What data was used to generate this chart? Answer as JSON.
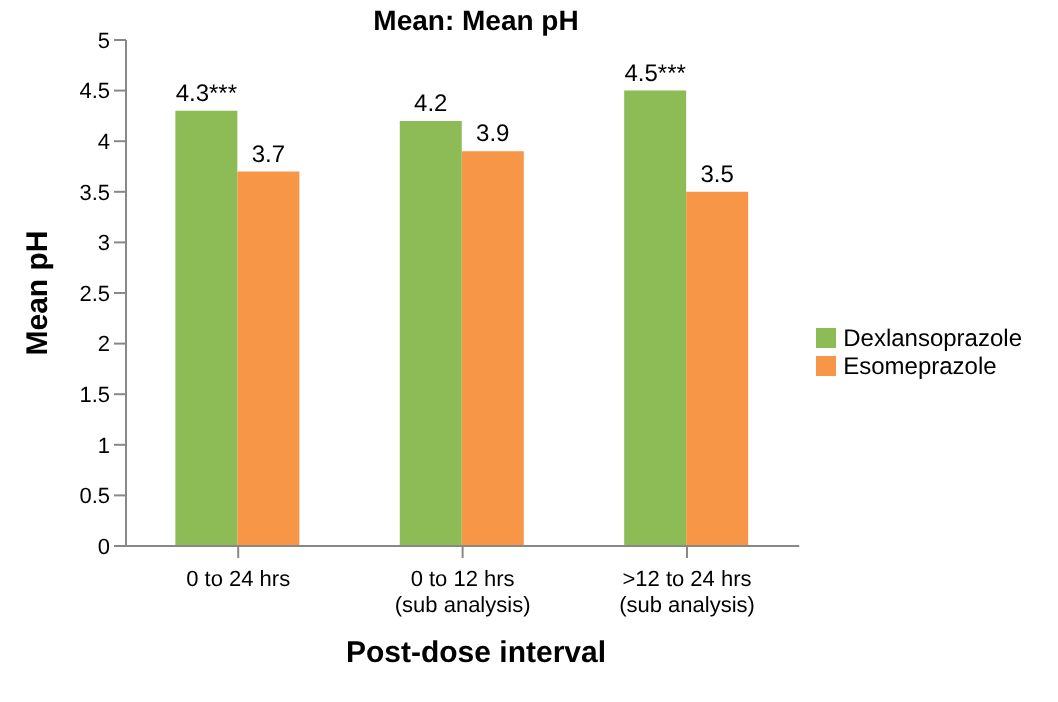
{
  "chart_data": {
    "type": "bar",
    "title": "Mean: Mean pH",
    "xlabel": "Post-dose interval",
    "ylabel": "Mean pH",
    "categories": [
      "0 to 24 hrs",
      "0 to 12 hrs\n(sub analysis)",
      ">12 to 24 hrs\n(sub analysis)"
    ],
    "series": [
      {
        "name": "Dexlansoprazole",
        "color": "#8dbb56",
        "values": [
          4.3,
          4.2,
          4.5
        ],
        "value_labels": [
          "4.3***",
          "4.2",
          "4.5***"
        ]
      },
      {
        "name": "Esomeprazole",
        "color": "#f79646",
        "values": [
          3.7,
          3.9,
          3.5
        ],
        "value_labels": [
          "3.7",
          "3.9",
          "3.5"
        ]
      }
    ],
    "ylim": [
      0,
      5
    ],
    "yticks": [
      0,
      0.5,
      1,
      1.5,
      2,
      2.5,
      3,
      3.5,
      4,
      4.5,
      5
    ],
    "grid": false,
    "legend": "right"
  }
}
